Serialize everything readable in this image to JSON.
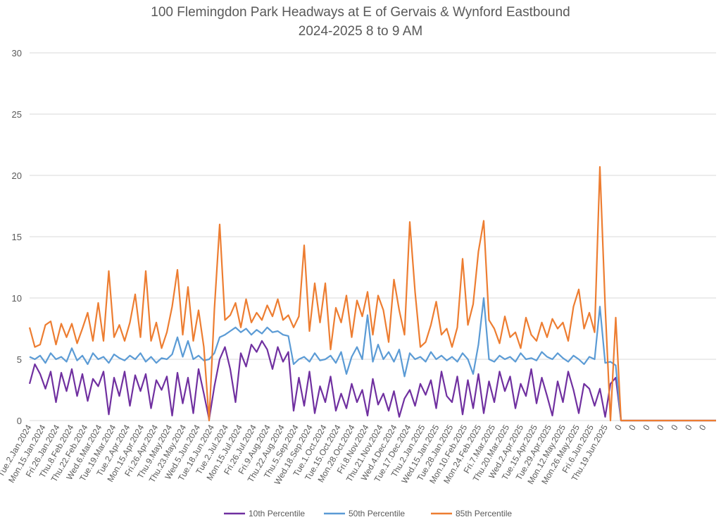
{
  "chart_data": {
    "type": "line",
    "title": "100 Flemingdon Park Headways at E of Gervais & Wynford Eastbound",
    "subtitle": "2024-2025 8 to 9 AM",
    "xlabel": "",
    "ylabel": "",
    "ylim": [
      0,
      30
    ],
    "yticks": [
      0,
      5,
      10,
      15,
      20,
      25,
      30
    ],
    "grid": true,
    "legend": "bottom",
    "x_tick_labels": [
      "Tue.2.Jan.2024",
      "Mon.15.Jan.2024",
      "Fri.26.Jan.2024",
      "Thu.8.Feb.2024",
      "Thu.22.Feb.2024",
      "Wed.6.Mar.2024",
      "Tue.19.Mar.2024",
      "Tue.2.Apr.2024",
      "Mon.15.Apr.2024",
      "Fri.26.Apr.2024",
      "Thu.9.May.2024",
      "Thu.23.May.2024",
      "Wed.5.Jun.2024",
      "Tue.18.Jun.2024",
      "Tue.2.Jul.2024",
      "Mon.15.Jul.2024",
      "Fri.26.Jul.2024",
      "Fri.9.Aug.2024",
      "Thu.22.Aug.2024",
      "Thu.5.Sep.2024",
      "Wed.18.Sep.2024",
      "Tue.1.Oct.2024",
      "Tue.15.Oct.2024",
      "Mon.28.Oct.2024",
      "Fri.8.Nov.2024",
      "Thu.21.Nov.2024",
      "Wed.4.Dec.2024",
      "Tue.17.Dec.2024",
      "Thu.2.Jan.2025",
      "Wed.15.Jan.2025",
      "Tue.28.Jan.2025",
      "Mon.10.Feb.2025",
      "Mon.24.Feb.2025",
      "Fri.7.Mar.2025",
      "Thu.20.Mar.2025",
      "Wed.2.Apr.2025",
      "Tue.15.Apr.2025",
      "Tue.29.Apr.2025",
      "Mon.12.May.2025",
      "Mon.26.May.2025",
      "Fri.6.Jun.2025",
      "Thu.19.Jun.2025",
      "0",
      "0",
      "0",
      "0",
      "0",
      "0",
      "0"
    ],
    "series": [
      {
        "name": "10th Percentile",
        "color": "#7030A0",
        "values": [
          3.0,
          4.6,
          3.8,
          2.6,
          4.0,
          1.5,
          3.9,
          2.4,
          4.2,
          2.0,
          3.8,
          1.6,
          3.4,
          2.8,
          4.0,
          0.5,
          3.5,
          2.0,
          4.0,
          1.2,
          3.7,
          2.4,
          3.8,
          1.0,
          3.3,
          2.5,
          3.6,
          0.4,
          3.9,
          1.4,
          3.5,
          0.6,
          4.2,
          2.2,
          0.1,
          2.8,
          5.0,
          6.0,
          4.2,
          1.5,
          5.5,
          4.4,
          6.2,
          5.6,
          6.5,
          5.8,
          4.2,
          6.0,
          4.8,
          5.6,
          0.8,
          3.5,
          1.2,
          4.0,
          0.6,
          2.8,
          1.5,
          3.6,
          0.8,
          2.2,
          1.0,
          3.0,
          1.5,
          2.5,
          0.4,
          3.4,
          1.3,
          2.2,
          0.8,
          2.4,
          0.3,
          1.8,
          2.5,
          1.2,
          3.0,
          2.1,
          3.3,
          1.0,
          4.0,
          2.0,
          1.5,
          3.6,
          0.5,
          3.3,
          1.0,
          3.8,
          0.6,
          3.2,
          1.5,
          4.0,
          2.4,
          3.6,
          1.0,
          3.0,
          2.0,
          4.2,
          1.4,
          3.5,
          2.0,
          0.4,
          3.2,
          1.5,
          4.0,
          2.5,
          0.6,
          3.0,
          2.6,
          1.2,
          2.6,
          0.3,
          3.0,
          3.5,
          0,
          0,
          0,
          0,
          0,
          0,
          0,
          0,
          0,
          0,
          0,
          0,
          0,
          0,
          0,
          0,
          0,
          0,
          0
        ]
      },
      {
        "name": "50th Percentile",
        "color": "#5B9BD5",
        "values": [
          5.2,
          5.0,
          5.3,
          4.7,
          5.5,
          5.0,
          5.2,
          4.8,
          5.9,
          4.9,
          5.3,
          4.6,
          5.5,
          5.0,
          5.2,
          4.7,
          5.4,
          5.1,
          4.9,
          5.3,
          5.0,
          5.5,
          4.8,
          5.2,
          4.7,
          5.1,
          5.0,
          5.4,
          6.8,
          5.2,
          6.5,
          5.0,
          5.3,
          4.9,
          5.0,
          5.5,
          6.8,
          7.0,
          7.3,
          7.6,
          7.2,
          7.5,
          7.0,
          7.4,
          7.1,
          7.6,
          7.2,
          7.3,
          7.0,
          6.9,
          4.6,
          5.0,
          5.2,
          4.8,
          5.5,
          4.9,
          5.0,
          5.3,
          4.7,
          5.6,
          3.8,
          5.2,
          6.0,
          5.0,
          8.6,
          4.8,
          6.2,
          5.0,
          5.6,
          4.8,
          5.8,
          3.6,
          5.5,
          5.0,
          5.2,
          4.8,
          5.6,
          5.0,
          5.3,
          4.9,
          5.2,
          4.8,
          5.5,
          5.0,
          3.8,
          6.2,
          10.0,
          5.0,
          4.8,
          5.3,
          5.0,
          5.2,
          4.8,
          5.5,
          5.0,
          5.1,
          4.9,
          5.6,
          5.2,
          5.0,
          5.5,
          5.1,
          4.8,
          5.3,
          5.0,
          4.6,
          5.2,
          5.0,
          9.3,
          4.7,
          4.8,
          4.5,
          0,
          0,
          0,
          0,
          0,
          0,
          0,
          0,
          0,
          0,
          0,
          0,
          0,
          0,
          0,
          0,
          0,
          0,
          0
        ]
      },
      {
        "name": "85th Percentile",
        "color": "#ED7D31",
        "values": [
          7.6,
          6.0,
          6.2,
          7.8,
          8.1,
          6.2,
          7.9,
          6.8,
          7.9,
          6.3,
          7.5,
          8.8,
          6.5,
          9.6,
          6.5,
          12.2,
          6.8,
          7.8,
          6.5,
          8.0,
          10.3,
          6.8,
          12.2,
          6.5,
          8.0,
          5.9,
          7.2,
          9.3,
          12.3,
          7.0,
          10.9,
          6.5,
          9.0,
          6.0,
          0,
          9.1,
          16.0,
          8.2,
          8.6,
          9.6,
          7.6,
          9.9,
          8.0,
          8.8,
          8.2,
          9.4,
          8.5,
          9.9,
          8.2,
          8.6,
          7.6,
          8.5,
          14.3,
          7.3,
          11.2,
          8.0,
          11.2,
          5.8,
          9.2,
          8.0,
          10.2,
          6.8,
          9.8,
          8.5,
          10.5,
          7.0,
          10.2,
          9.0,
          6.4,
          11.5,
          9.0,
          7.0,
          16.2,
          10.5,
          6.0,
          6.4,
          7.8,
          9.7,
          7.0,
          7.5,
          6.0,
          7.6,
          13.2,
          7.8,
          9.5,
          13.8,
          16.3,
          8.2,
          7.5,
          6.3,
          8.5,
          6.8,
          7.2,
          5.9,
          8.4,
          7.0,
          6.5,
          8.0,
          6.8,
          8.3,
          7.5,
          8.0,
          6.5,
          9.3,
          10.7,
          7.5,
          8.8,
          7.2,
          20.7,
          9.3,
          0,
          8.4,
          0,
          0,
          0,
          0,
          0,
          0,
          0,
          0,
          0,
          0,
          0,
          0,
          0,
          0,
          0,
          0,
          0,
          0,
          0
        ]
      }
    ]
  }
}
